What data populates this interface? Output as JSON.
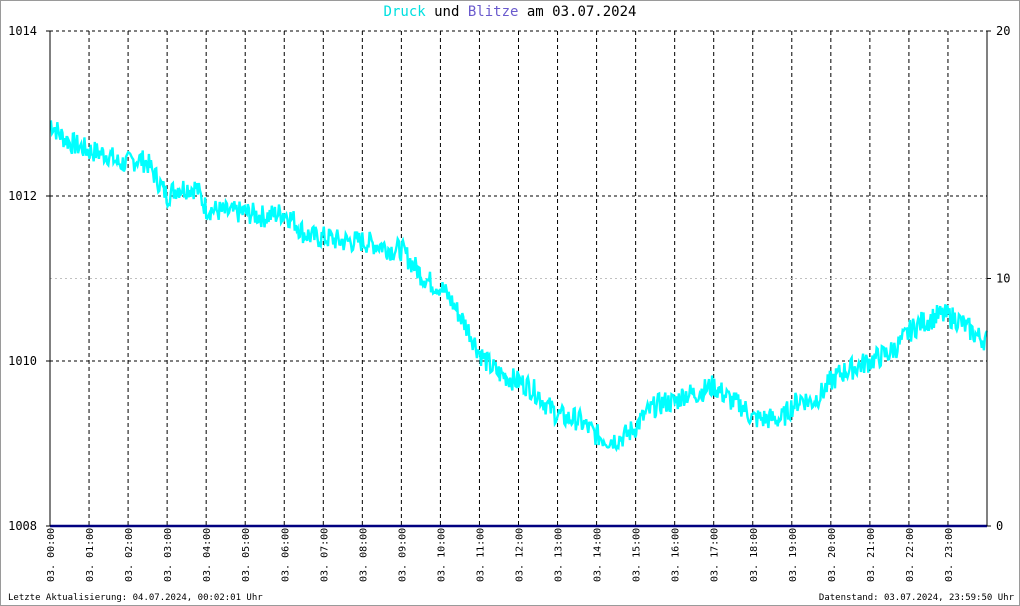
{
  "title": {
    "series1": "Druck",
    "sep": " und ",
    "series2": "Blitze",
    "suffix": " am 03.07.2024"
  },
  "colors": {
    "druck": "#00ffff",
    "blitze": "#000080",
    "title_druck": "#00e0e0",
    "title_blitze": "#6a5acd",
    "grid": "#000000",
    "grid_minor": "#c0c0c0"
  },
  "footer": {
    "left": "Letzte Aktualisierung: 04.07.2024, 00:02:01 Uhr",
    "right": "Datenstand: 03.07.2024, 23:59:50 Uhr"
  },
  "chart_data": {
    "type": "line",
    "title": "Druck und Blitze am 03.07.2024",
    "ylim_left": [
      1008,
      1014
    ],
    "yticks_left": [
      "1008",
      "1010",
      "1012",
      "1014"
    ],
    "ylim_right": [
      0,
      20
    ],
    "yticks_right": [
      "0",
      "10",
      "20"
    ],
    "xlim_hours": [
      0,
      24
    ],
    "x_labels": [
      "03. 00:00",
      "03. 01:00",
      "03. 02:00",
      "03. 03:00",
      "03. 04:00",
      "03. 05:00",
      "03. 06:00",
      "03. 07:00",
      "03. 08:00",
      "03. 09:00",
      "03. 10:00",
      "03. 11:00",
      "03. 12:00",
      "03. 13:00",
      "03. 14:00",
      "03. 15:00",
      "03. 16:00",
      "03. 17:00",
      "03. 18:00",
      "03. 19:00",
      "03. 20:00",
      "03. 21:00",
      "03. 22:00",
      "03. 23:00"
    ],
    "grid": true,
    "series": [
      {
        "name": "Druck",
        "axis": "left",
        "x_hours": [
          0,
          0.25,
          0.5,
          0.75,
          1,
          1.5,
          1.75,
          2,
          2.25,
          2.5,
          2.75,
          3,
          3.25,
          3.5,
          3.75,
          4,
          4.5,
          5,
          5.5,
          6,
          6.25,
          6.5,
          6.75,
          7,
          7.5,
          8,
          8.5,
          8.75,
          9,
          9.25,
          9.5,
          9.75,
          10,
          10.25,
          10.5,
          10.75,
          11,
          11.25,
          11.5,
          11.75,
          12,
          12.25,
          12.5,
          12.75,
          13,
          13.25,
          13.5,
          13.75,
          14,
          14.25,
          14.5,
          14.75,
          15,
          15.25,
          15.5,
          15.75,
          16,
          16.25,
          16.5,
          16.75,
          17,
          17.25,
          17.5,
          17.75,
          18,
          18.25,
          18.5,
          18.75,
          19,
          19.25,
          19.5,
          19.75,
          20,
          20.25,
          20.5,
          20.75,
          21,
          21.25,
          21.5,
          21.75,
          22,
          22.25,
          22.5,
          22.75,
          23,
          23.25,
          23.5,
          23.75,
          24
        ],
        "values": [
          1012.9,
          1012.75,
          1012.65,
          1012.6,
          1012.55,
          1012.5,
          1012.4,
          1012.4,
          1012.45,
          1012.4,
          1012.2,
          1012.0,
          1012.1,
          1012.1,
          1012.1,
          1011.85,
          1011.8,
          1011.8,
          1011.75,
          1011.8,
          1011.7,
          1011.55,
          1011.5,
          1011.5,
          1011.45,
          1011.45,
          1011.4,
          1011.35,
          1011.35,
          1011.2,
          1011.05,
          1010.95,
          1010.9,
          1010.75,
          1010.55,
          1010.35,
          1010.1,
          1009.95,
          1009.85,
          1009.8,
          1009.75,
          1009.7,
          1009.6,
          1009.45,
          1009.35,
          1009.3,
          1009.3,
          1009.2,
          1009.1,
          1009.05,
          1009.05,
          1009.1,
          1009.2,
          1009.35,
          1009.45,
          1009.5,
          1009.5,
          1009.6,
          1009.6,
          1009.65,
          1009.7,
          1009.6,
          1009.5,
          1009.45,
          1009.3,
          1009.3,
          1009.3,
          1009.3,
          1009.45,
          1009.55,
          1009.5,
          1009.6,
          1009.75,
          1009.85,
          1009.9,
          1009.95,
          1010.0,
          1010.05,
          1010.1,
          1010.2,
          1010.35,
          1010.45,
          1010.5,
          1010.55,
          1010.55,
          1010.5,
          1010.4,
          1010.3,
          1010.25
        ]
      },
      {
        "name": "Blitze",
        "axis": "right",
        "x_hours": [
          0,
          24
        ],
        "values": [
          0,
          0
        ]
      }
    ]
  }
}
